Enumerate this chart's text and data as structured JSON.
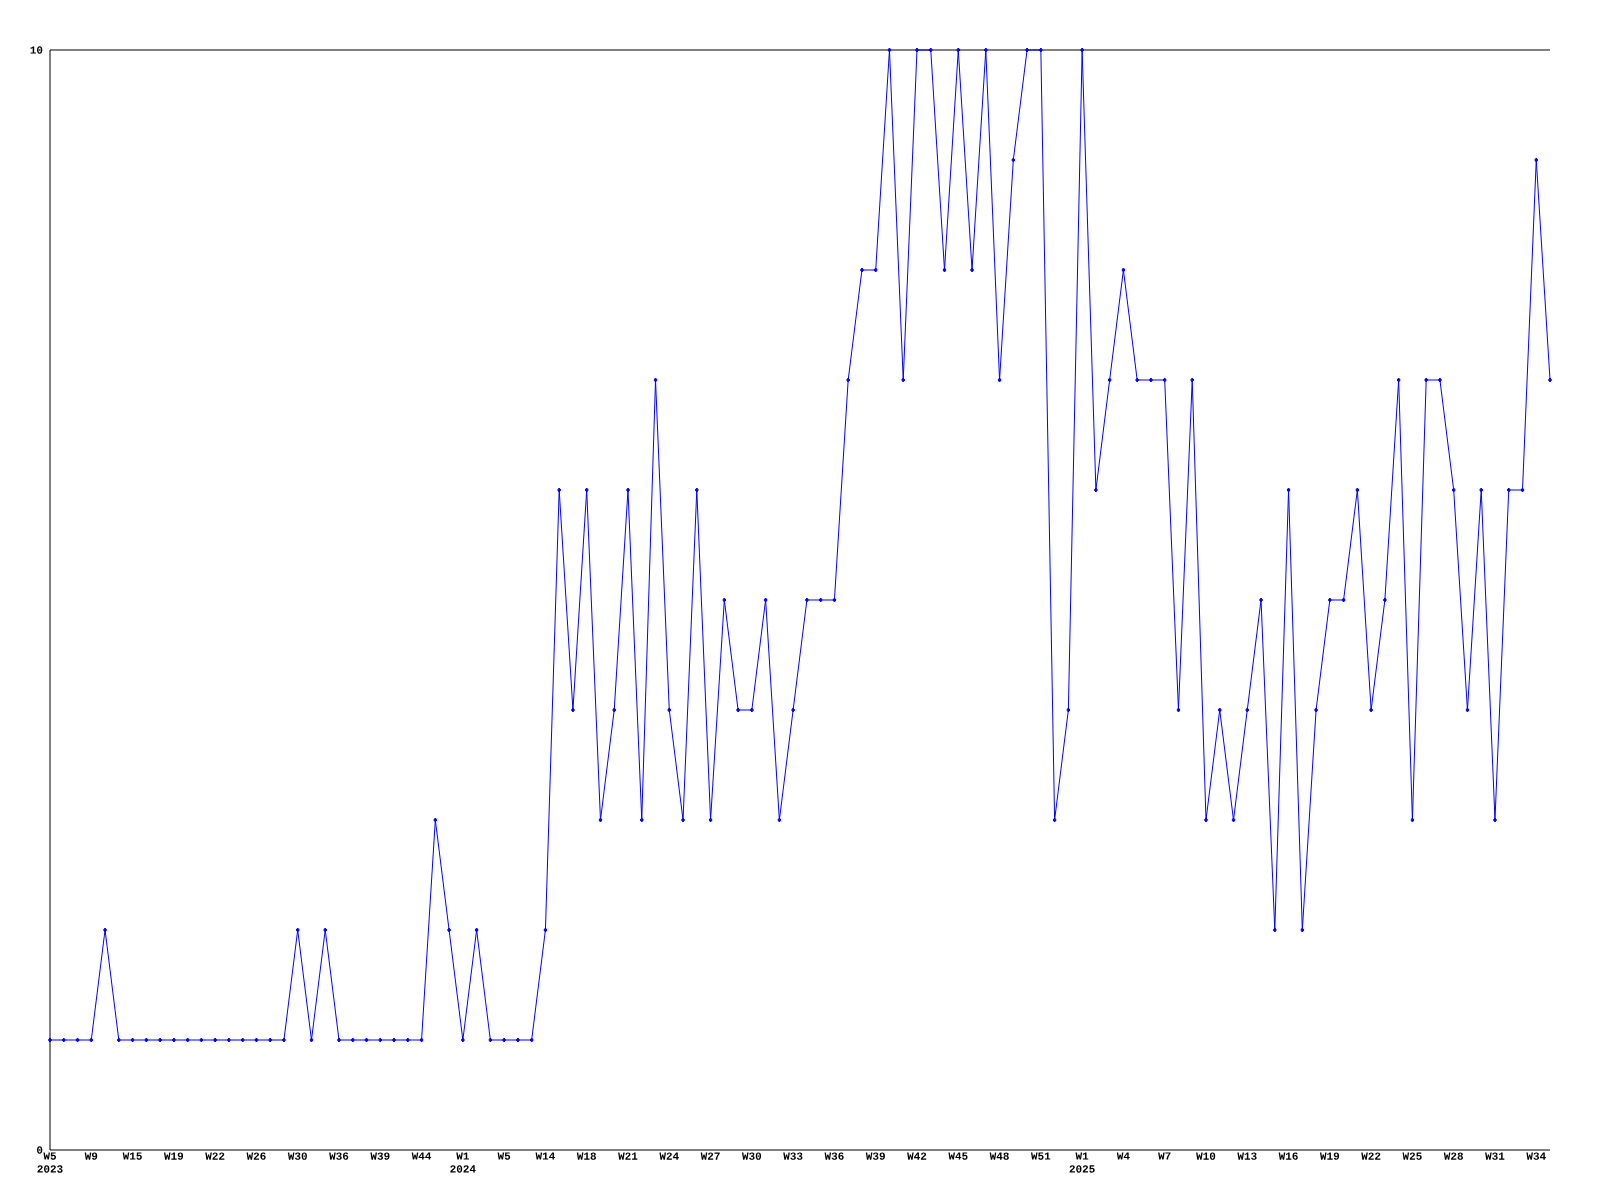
{
  "chart_data": {
    "type": "line",
    "categories": [
      "W5 2023",
      null,
      null,
      "W9",
      null,
      null,
      "W15",
      null,
      null,
      "W19",
      null,
      null,
      "W22",
      null,
      null,
      "W26",
      null,
      null,
      "W30",
      null,
      null,
      "W36",
      null,
      null,
      "W39",
      null,
      null,
      "W44",
      null,
      null,
      "W1 2024",
      null,
      null,
      "W5",
      null,
      null,
      "W14",
      null,
      null,
      "W18",
      null,
      null,
      "W21",
      null,
      null,
      "W24",
      null,
      null,
      "W27",
      null,
      null,
      "W30",
      null,
      null,
      "W33",
      null,
      null,
      "W36",
      null,
      null,
      "W39",
      null,
      null,
      "W42",
      null,
      null,
      "W45",
      null,
      null,
      "W48",
      null,
      null,
      "W51",
      null,
      null,
      "W1 2025",
      null,
      null,
      "W4",
      null,
      null,
      "W7",
      null,
      null,
      "W10",
      null,
      null,
      "W13",
      null,
      null,
      "W16",
      null,
      null,
      "W19",
      null,
      null,
      "W22",
      null,
      null,
      "W25",
      null,
      null,
      "W28",
      null,
      null,
      "W31",
      null,
      null,
      "W34",
      null
    ],
    "values": [
      1,
      1,
      1,
      1,
      2,
      1,
      1,
      1,
      1,
      1,
      1,
      1,
      1,
      1,
      1,
      1,
      1,
      1,
      2,
      1,
      2,
      1,
      1,
      1,
      1,
      1,
      1,
      1,
      3,
      2,
      1,
      2,
      1,
      1,
      1,
      1,
      2,
      6,
      4,
      6,
      3,
      4,
      6,
      3,
      7,
      4,
      3,
      6,
      3,
      5,
      4,
      4,
      5,
      3,
      4,
      5,
      5,
      5,
      7,
      8,
      8,
      10,
      7,
      10,
      10,
      8,
      10,
      8,
      10,
      7,
      9,
      10,
      10,
      3,
      4,
      10,
      6,
      7,
      8,
      7,
      7,
      7,
      4,
      7,
      3,
      4,
      3,
      4,
      5,
      2,
      6,
      2,
      4,
      5,
      5,
      6,
      4,
      5,
      7,
      3,
      7,
      7,
      6,
      4,
      6,
      3,
      6,
      6,
      9,
      7
    ],
    "color": "#0000ff",
    "marker": "diamond",
    "ylim": [
      0,
      10
    ],
    "yticks": [
      0,
      10
    ]
  }
}
